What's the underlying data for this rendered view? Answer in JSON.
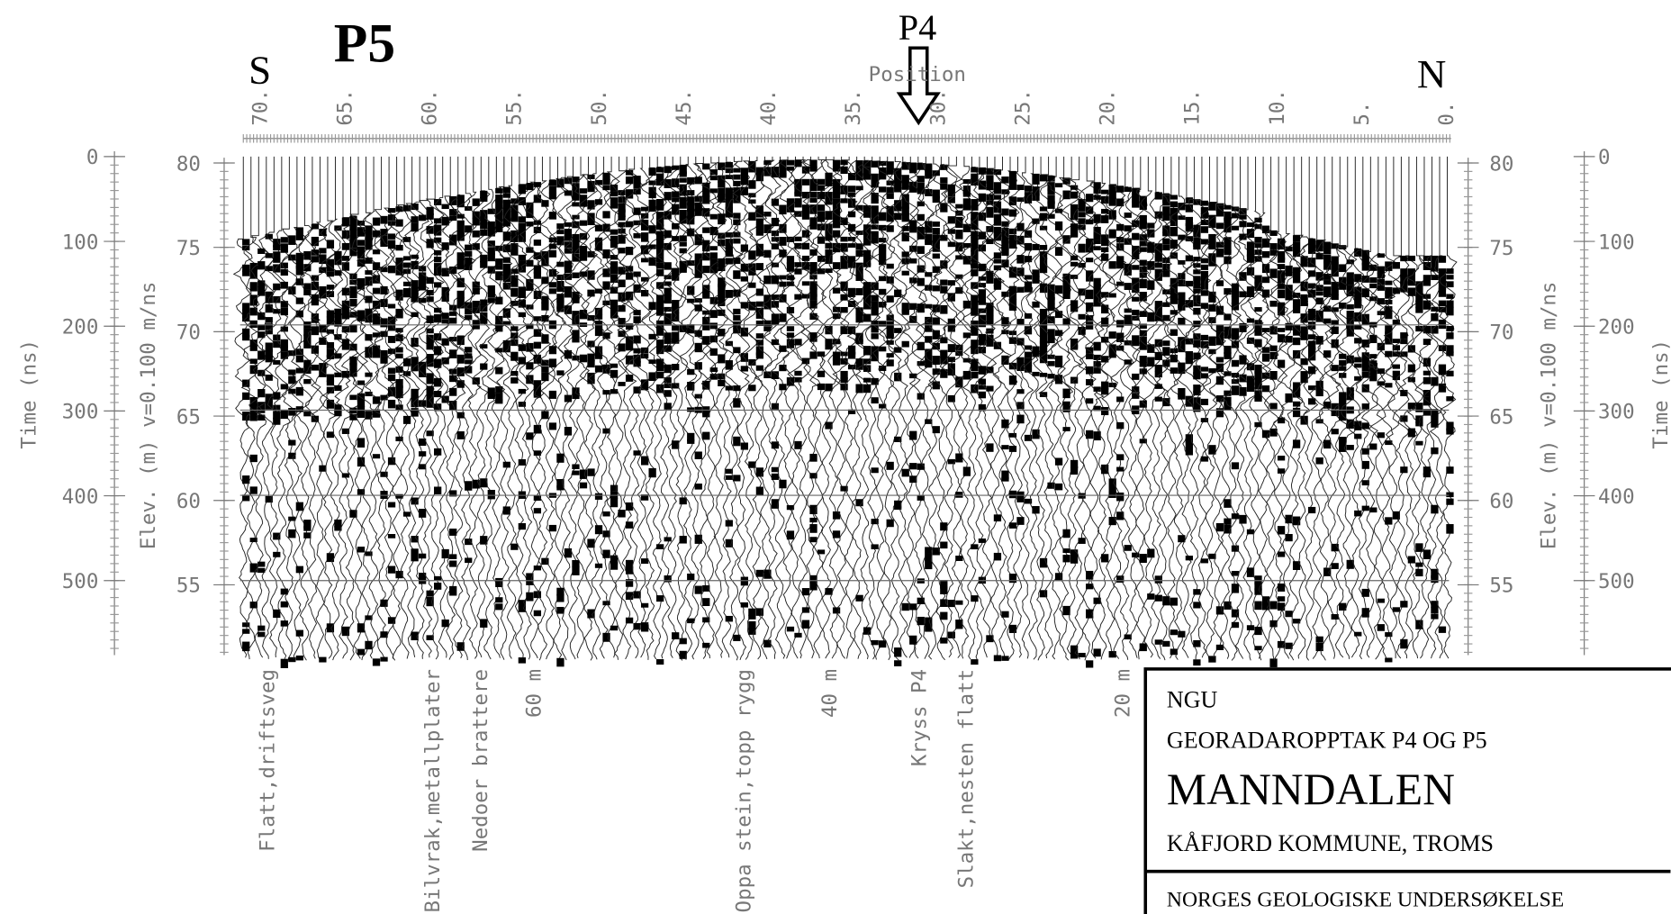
{
  "header": {
    "profile_left": "S",
    "profile_name": "P5",
    "crossing": "P4",
    "axis_title": "Position",
    "profile_right": "N"
  },
  "position_ticks": [
    "70.",
    "65.",
    "60.",
    "55.",
    "50.",
    "45.",
    "40.",
    "35.",
    "30.",
    "25.",
    "20.",
    "15.",
    "10.",
    "5.",
    "0."
  ],
  "time_axis": {
    "title": "Time (ns)",
    "ticks": [
      "0",
      "100",
      "200",
      "300",
      "400",
      "500"
    ]
  },
  "elevation_axis": {
    "title": "Elev. (m) v=0.100 m/ns",
    "ticks": [
      "80",
      "75",
      "70",
      "65",
      "60",
      "55"
    ]
  },
  "annotations": [
    "Flatt,driftsveg",
    "Bilvrak,metallplater",
    "Nedoer brattere",
    "60 m",
    "Oppa stein,topp rygg",
    "40 m",
    "Kryss P4",
    "Slakt,nesten flatt",
    "20 m"
  ],
  "title_block": {
    "org": "NGU",
    "subtitle": "GEORADAROPPTAK  P4 OG P5",
    "title": "MANNDALEN",
    "location": "KÅFJORD KOMMUNE,  TROMS",
    "footer": "NORGES GEOLOGISKE UNDERSØKELSE"
  }
}
